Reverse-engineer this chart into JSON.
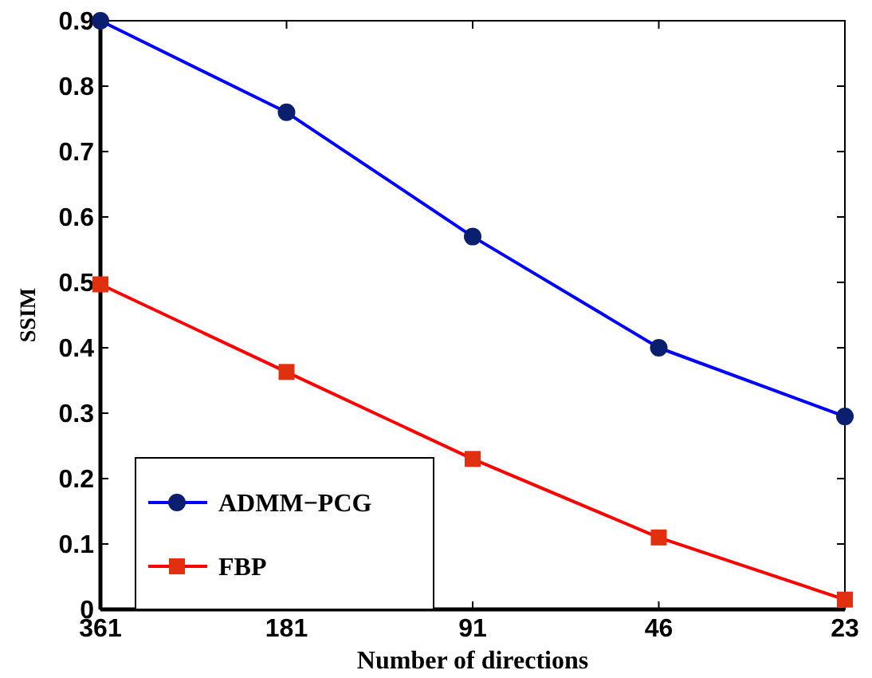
{
  "chart_data": {
    "type": "line",
    "xlabel": "Number of directions",
    "ylabel": "SSIM",
    "categories": [
      "361",
      "181",
      "91",
      "46",
      "23"
    ],
    "ylim": [
      0,
      0.9
    ],
    "yticks": [
      0,
      0.1,
      0.2,
      0.3,
      0.4,
      0.5,
      0.6,
      0.7,
      0.8,
      0.9
    ],
    "series": [
      {
        "name": "ADMM−PCG",
        "color": "#0000ff",
        "marker": "circle",
        "values": [
          0.9,
          0.76,
          0.57,
          0.4,
          0.295
        ]
      },
      {
        "name": "FBP",
        "color": "#ff0000",
        "marker": "square",
        "values": [
          0.497,
          0.363,
          0.23,
          0.11,
          0.015
        ]
      }
    ],
    "legend": "bottom left",
    "grid": false
  }
}
